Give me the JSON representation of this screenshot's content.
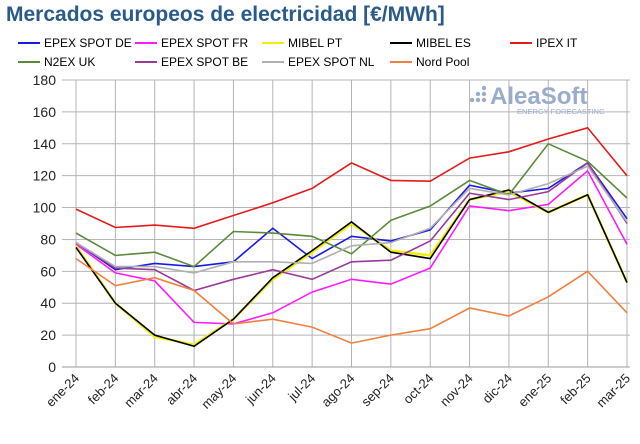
{
  "chart_data": {
    "type": "line",
    "title": "Mercados europeos de electricidad [€/MWh]",
    "xlabel": "",
    "ylabel": "",
    "ylim": [
      0,
      180
    ],
    "yticks": [
      0,
      20,
      40,
      60,
      80,
      100,
      120,
      140,
      160,
      180
    ],
    "grid": true,
    "legend_placement": "top",
    "categories": [
      "ene-24",
      "feb-24",
      "mar-24",
      "abr-24",
      "may-24",
      "jun-24",
      "jul-24",
      "ago-24",
      "sep-24",
      "oct-24",
      "nov-24",
      "dic-24",
      "ene-25",
      "feb-25",
      "mar-25"
    ],
    "series": [
      {
        "name": "EPEX SPOT DE",
        "color": "#1a1ae6",
        "values": [
          78,
          61,
          65,
          63,
          66,
          87,
          68,
          82,
          79,
          86,
          114,
          109,
          112,
          128,
          93
        ]
      },
      {
        "name": "EPEX SPOT FR",
        "color": "#ff1aff",
        "values": [
          77,
          59,
          54,
          28,
          27,
          34,
          47,
          55,
          52,
          62,
          101,
          98,
          102,
          123,
          77
        ]
      },
      {
        "name": "MIBEL PT",
        "color": "#f0f000",
        "values": [
          76,
          40,
          19,
          14,
          30,
          55,
          72,
          90,
          73,
          70,
          105,
          110,
          97,
          108,
          53
        ]
      },
      {
        "name": "MIBEL ES",
        "color": "#000000",
        "values": [
          75,
          40,
          20,
          13,
          30,
          56,
          73,
          91,
          72,
          68,
          105,
          111,
          97,
          108,
          53
        ]
      },
      {
        "name": "IPEX IT",
        "color": "#e61a1a",
        "values": [
          99,
          87.5,
          89,
          87,
          95,
          103,
          112,
          128,
          117,
          116.5,
          131,
          135,
          143,
          150,
          120
        ]
      },
      {
        "name": "N2EX UK",
        "color": "#5a8a3a",
        "values": [
          84,
          70,
          72,
          63,
          85,
          84,
          82,
          71,
          92,
          101,
          117,
          108,
          140,
          129,
          106
        ]
      },
      {
        "name": "EPEX SPOT BE",
        "color": "#9a3a9a",
        "values": [
          78,
          62,
          61,
          48,
          55,
          61,
          55,
          66,
          67,
          79,
          109,
          105,
          110,
          128,
          90
        ]
      },
      {
        "name": "EPEX SPOT NL",
        "color": "#b0b0b0",
        "values": [
          78,
          63,
          63,
          59,
          66,
          66,
          65,
          76,
          78,
          87,
          112,
          108,
          115,
          126,
          91
        ]
      },
      {
        "name": "Nord Pool",
        "color": "#f08040",
        "values": [
          68,
          51,
          56,
          48,
          27,
          30,
          25,
          15,
          20,
          24,
          37,
          32,
          44,
          60,
          34
        ]
      }
    ]
  },
  "watermark": {
    "brand": "AleaSoft",
    "tagline": "ENERGY FORECASTING"
  }
}
